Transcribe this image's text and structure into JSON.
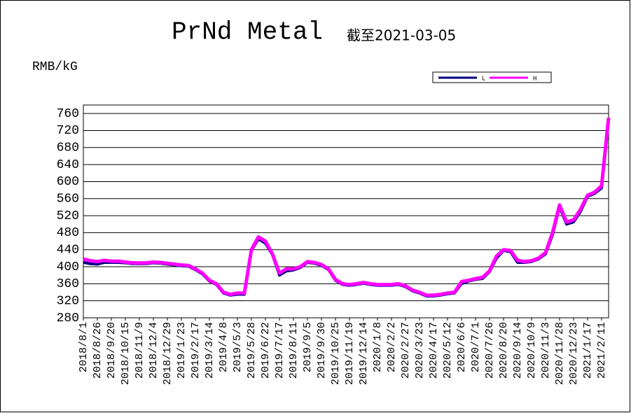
{
  "chart_data": {
    "type": "line",
    "title": "PrNd Metal",
    "subtitle": "截至2021-03-05",
    "y_label": "RMB/kG",
    "categories": [
      "2018/8/1",
      null,
      "2018/8/26",
      null,
      "2018/9/20",
      null,
      "2018/10/15",
      null,
      "2018/11/9",
      null,
      "2018/12/4",
      null,
      "2018/12/29",
      null,
      "2019/1/23",
      null,
      "2019/2/17",
      null,
      "2019/3/14",
      null,
      "2019/4/8",
      null,
      "2019/5/3",
      null,
      "2019/5/28",
      null,
      "2019/6/22",
      null,
      "2019/7/17",
      null,
      "2019/8/11",
      null,
      "2019/9/5",
      null,
      "2019/9/30",
      null,
      "2019/10/25",
      null,
      "2019/11/19",
      null,
      "2019/12/14",
      null,
      "2020/1/8",
      null,
      "2020/2/2",
      null,
      "2020/2/27",
      null,
      "2020/3/23",
      null,
      "2020/4/17",
      null,
      "2020/5/12",
      null,
      "2020/6/6",
      null,
      "2020/7/1",
      null,
      "2020/7/26",
      null,
      "2020/8/20",
      null,
      "2020/9/14",
      null,
      "2020/10/9",
      null,
      "2020/11/3",
      null,
      "2020/11/28",
      null,
      "2020/12/23",
      null,
      "2021/1/17",
      null,
      "2021/2/11",
      null
    ],
    "series": [
      {
        "name": "L",
        "color": "#000080",
        "values": [
          410,
          407,
          406,
          410,
          410,
          410,
          409,
          407,
          407,
          407,
          409,
          408,
          406,
          404,
          402,
          401,
          393,
          383,
          366,
          358,
          338,
          333,
          335,
          335,
          438,
          465,
          455,
          428,
          380,
          390,
          392,
          398,
          410,
          408,
          403,
          393,
          368,
          358,
          356,
          358,
          361,
          358,
          356,
          356,
          356,
          358,
          353,
          343,
          338,
          331,
          331,
          333,
          336,
          338,
          360,
          366,
          370,
          372,
          388,
          420,
          438,
          435,
          410,
          410,
          412,
          418,
          430,
          475,
          540,
          500,
          505,
          530,
          565,
          572,
          585,
          745
        ]
      },
      {
        "name": "H",
        "color": "#ff00ff",
        "values": [
          418,
          414,
          412,
          415,
          413,
          413,
          411,
          409,
          409,
          409,
          411,
          410,
          408,
          406,
          404,
          403,
          395,
          385,
          368,
          360,
          340,
          335,
          338,
          338,
          440,
          470,
          460,
          430,
          385,
          395,
          395,
          400,
          412,
          410,
          405,
          395,
          370,
          360,
          358,
          360,
          363,
          360,
          358,
          358,
          358,
          360,
          355,
          345,
          340,
          333,
          333,
          335,
          338,
          340,
          365,
          368,
          372,
          375,
          390,
          425,
          440,
          438,
          415,
          412,
          414,
          420,
          433,
          480,
          545,
          505,
          510,
          535,
          568,
          575,
          590,
          750
        ]
      }
    ],
    "ylim": [
      280,
      780
    ],
    "yticks": [
      280,
      320,
      360,
      400,
      440,
      480,
      520,
      560,
      600,
      640,
      680,
      720,
      760
    ],
    "grid": true
  }
}
